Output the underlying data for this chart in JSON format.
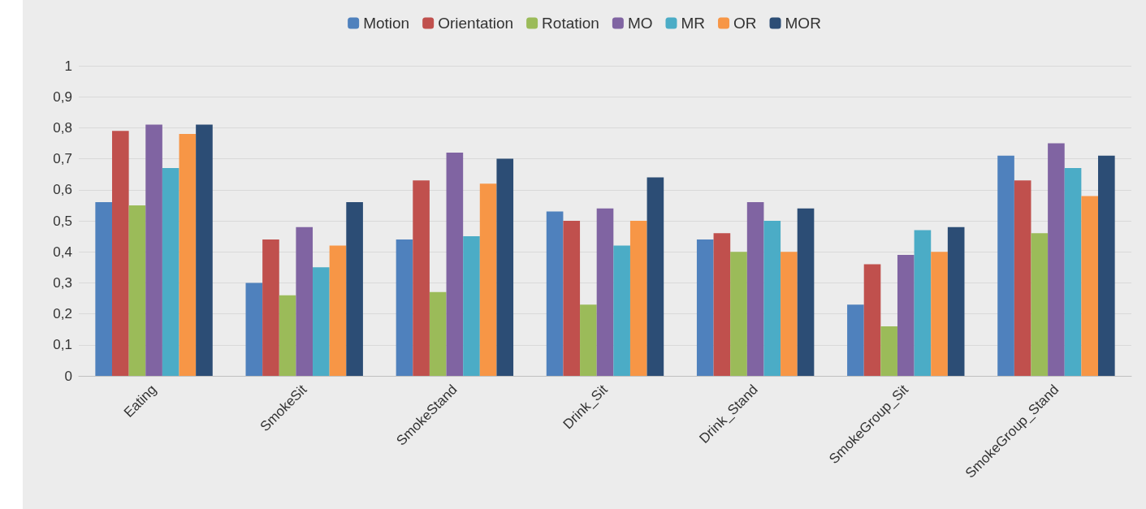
{
  "chart_data": {
    "type": "bar",
    "categories": [
      "Eating",
      "SmokeSit",
      "SmokeStand",
      "Drink_Sit",
      "Drink_Stand",
      "SmokeGroup_Sit",
      "SmokeGroup_Stand"
    ],
    "series": [
      {
        "name": "Motion",
        "color": "#4f81bd",
        "values": [
          0.56,
          0.3,
          0.44,
          0.53,
          0.44,
          0.23,
          0.71
        ]
      },
      {
        "name": "Orientation",
        "color": "#c0504d",
        "values": [
          0.79,
          0.44,
          0.63,
          0.5,
          0.46,
          0.36,
          0.63
        ]
      },
      {
        "name": "Rotation",
        "color": "#9bbb59",
        "values": [
          0.55,
          0.26,
          0.27,
          0.23,
          0.4,
          0.16,
          0.46
        ]
      },
      {
        "name": "MO",
        "color": "#8064a2",
        "values": [
          0.81,
          0.48,
          0.72,
          0.54,
          0.56,
          0.39,
          0.75
        ]
      },
      {
        "name": "MR",
        "color": "#4bacc6",
        "values": [
          0.67,
          0.35,
          0.45,
          0.42,
          0.5,
          0.47,
          0.67
        ]
      },
      {
        "name": "OR",
        "color": "#f79646",
        "values": [
          0.78,
          0.42,
          0.62,
          0.5,
          0.4,
          0.4,
          0.58
        ]
      },
      {
        "name": "MOR",
        "color": "#2c4d75",
        "values": [
          0.81,
          0.56,
          0.7,
          0.64,
          0.54,
          0.48,
          0.71
        ]
      }
    ],
    "ylim": [
      0,
      1
    ],
    "yticks": [
      0,
      {
        "value": 0.1,
        "label": "0,1"
      },
      {
        "value": 0.2,
        "label": "0,2"
      },
      {
        "value": 0.3,
        "label": "0,3"
      },
      {
        "value": 0.4,
        "label": "0,4"
      },
      {
        "value": 0.5,
        "label": "0,5"
      },
      {
        "value": 0.6,
        "label": "0,6"
      },
      {
        "value": 0.7,
        "label": "0,7"
      },
      {
        "value": 0.8,
        "label": "0,8"
      },
      {
        "value": 0.9,
        "label": "0,9"
      },
      1
    ],
    "grid": "y",
    "legend": "top"
  }
}
